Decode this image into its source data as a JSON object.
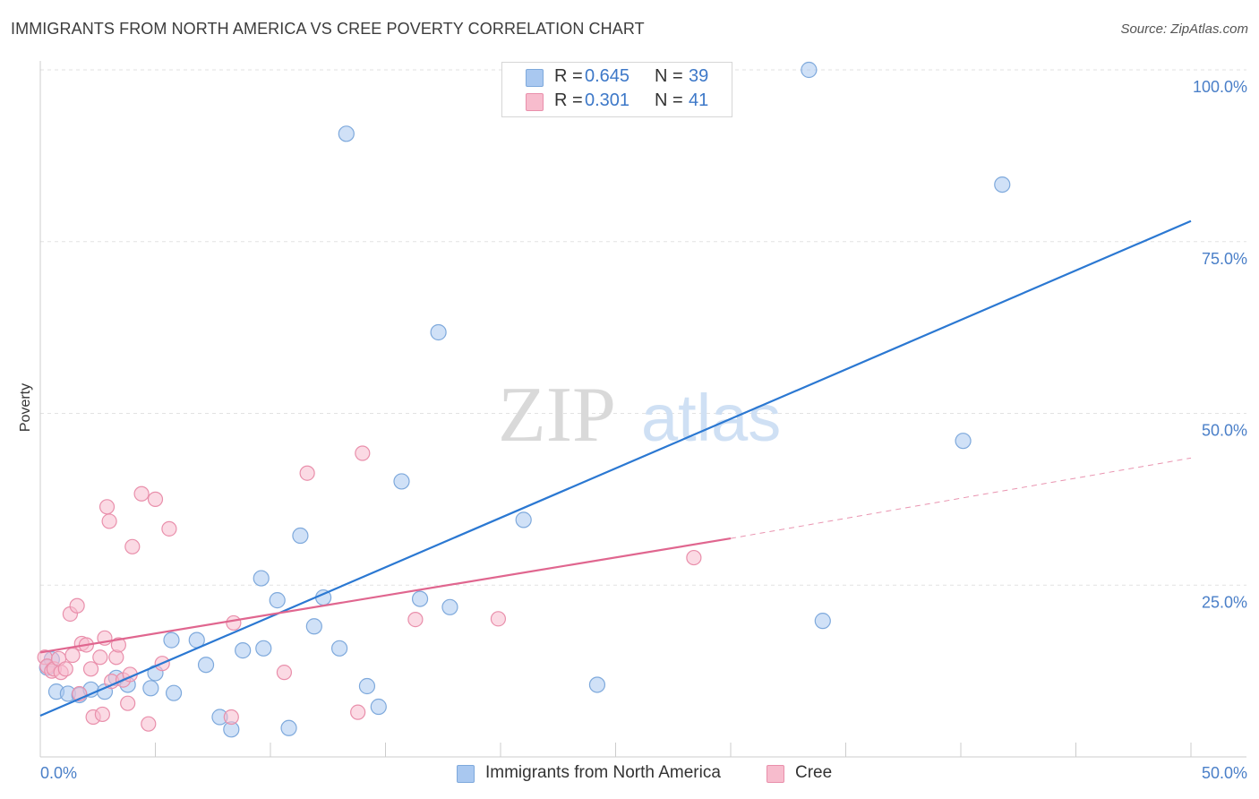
{
  "header": {
    "title": "IMMIGRANTS FROM NORTH AMERICA VS CREE POVERTY CORRELATION CHART",
    "source": "Source: ZipAtlas.com"
  },
  "watermark": {
    "zip": "ZIP",
    "atlas": "atlas"
  },
  "legend": {
    "rows": [
      {
        "r_label": "R =",
        "r_value": "0.645",
        "n_label": "N =",
        "n_value": "39",
        "color": "#a9c8f0"
      },
      {
        "r_label": "R =",
        "r_value": "0.301",
        "n_label": "N =",
        "n_value": "41",
        "color": "#f7bccd"
      }
    ]
  },
  "colors": {
    "blue_fill": "#a9c8f0",
    "blue_stroke": "#7ea9dc",
    "blue_line": "#2b78d2",
    "pink_fill": "#f7bccd",
    "pink_stroke": "#e98fab",
    "pink_line": "#e0668f",
    "grid": "#e2e2e2",
    "axis_text": "#4a7fc8"
  },
  "chart_data": {
    "type": "scatter",
    "title": "IMMIGRANTS FROM NORTH AMERICA VS CREE POVERTY CORRELATION CHART",
    "xlabel": "",
    "ylabel": "Poverty",
    "xlim": [
      0,
      50
    ],
    "ylim": [
      0,
      100
    ],
    "x_ticks": [
      0,
      5,
      10,
      15,
      20,
      25,
      30,
      35,
      40,
      45,
      50
    ],
    "x_tick_labels": {
      "min": "0.0%",
      "max": "50.0%"
    },
    "y_ticks": [
      25,
      50,
      75,
      100
    ],
    "y_tick_labels": [
      "25.0%",
      "50.0%",
      "75.0%",
      "100.0%"
    ],
    "grid": true,
    "legend_position": "top-center",
    "series": [
      {
        "name": "Immigrants from North America",
        "color": "#a9c8f0",
        "points": [
          [
            0.3,
            13.0
          ],
          [
            0.5,
            14.2
          ],
          [
            0.7,
            9.5
          ],
          [
            1.2,
            9.2
          ],
          [
            1.7,
            9.0
          ],
          [
            2.2,
            9.8
          ],
          [
            2.8,
            9.5
          ],
          [
            3.3,
            11.5
          ],
          [
            3.8,
            10.5
          ],
          [
            4.8,
            10.0
          ],
          [
            5.0,
            12.2
          ],
          [
            5.8,
            9.3
          ],
          [
            5.7,
            17.0
          ],
          [
            6.8,
            17.0
          ],
          [
            7.2,
            13.4
          ],
          [
            7.8,
            5.8
          ],
          [
            8.3,
            4.0
          ],
          [
            8.8,
            15.5
          ],
          [
            9.6,
            26.0
          ],
          [
            9.7,
            15.8
          ],
          [
            10.3,
            22.8
          ],
          [
            10.8,
            4.2
          ],
          [
            11.3,
            32.2
          ],
          [
            11.9,
            19.0
          ],
          [
            12.3,
            23.2
          ],
          [
            13.0,
            15.8
          ],
          [
            13.3,
            90.7
          ],
          [
            14.2,
            10.3
          ],
          [
            14.7,
            7.3
          ],
          [
            15.7,
            40.1
          ],
          [
            16.5,
            23.0
          ],
          [
            17.3,
            61.8
          ],
          [
            17.8,
            21.8
          ],
          [
            21.0,
            34.5
          ],
          [
            24.2,
            10.5
          ],
          [
            33.4,
            100.0
          ],
          [
            34.0,
            19.8
          ],
          [
            40.1,
            46.0
          ],
          [
            41.8,
            83.3
          ]
        ]
      },
      {
        "name": "Cree",
        "color": "#f7bccd",
        "points": [
          [
            0.2,
            14.5
          ],
          [
            0.3,
            13.2
          ],
          [
            0.5,
            12.5
          ],
          [
            0.6,
            12.8
          ],
          [
            0.8,
            14.3
          ],
          [
            0.9,
            12.3
          ],
          [
            1.1,
            12.8
          ],
          [
            1.3,
            20.8
          ],
          [
            1.4,
            14.8
          ],
          [
            1.6,
            22.0
          ],
          [
            1.7,
            9.2
          ],
          [
            1.8,
            16.5
          ],
          [
            2.0,
            16.3
          ],
          [
            2.2,
            12.8
          ],
          [
            2.3,
            5.8
          ],
          [
            2.6,
            14.5
          ],
          [
            2.7,
            6.2
          ],
          [
            2.8,
            17.3
          ],
          [
            2.9,
            36.4
          ],
          [
            3.0,
            34.3
          ],
          [
            3.1,
            11.0
          ],
          [
            3.3,
            14.5
          ],
          [
            3.4,
            16.3
          ],
          [
            3.6,
            11.2
          ],
          [
            3.8,
            7.8
          ],
          [
            3.9,
            12.0
          ],
          [
            4.0,
            30.6
          ],
          [
            4.4,
            38.3
          ],
          [
            4.7,
            4.8
          ],
          [
            5.0,
            37.5
          ],
          [
            5.3,
            13.6
          ],
          [
            5.6,
            33.2
          ],
          [
            8.3,
            5.8
          ],
          [
            8.4,
            19.5
          ],
          [
            10.6,
            12.3
          ],
          [
            11.6,
            41.3
          ],
          [
            13.8,
            6.5
          ],
          [
            14.0,
            44.2
          ],
          [
            16.3,
            20.0
          ],
          [
            19.9,
            20.1
          ],
          [
            28.4,
            29.0
          ]
        ]
      }
    ],
    "trendlines": [
      {
        "series": "Immigrants from North America",
        "x": [
          0,
          50
        ],
        "y": [
          6.0,
          78.0
        ],
        "style": "solid"
      },
      {
        "series": "Cree",
        "x": [
          0,
          30
        ],
        "y": [
          15.2,
          31.8
        ],
        "style": "solid"
      },
      {
        "series": "Cree",
        "x": [
          30,
          50
        ],
        "y": [
          31.8,
          43.5
        ],
        "style": "dashed"
      }
    ]
  },
  "bottom_legend": {
    "items": [
      {
        "label": "Immigrants from North America",
        "color": "#a9c8f0"
      },
      {
        "label": "Cree",
        "color": "#f7bccd"
      }
    ]
  }
}
